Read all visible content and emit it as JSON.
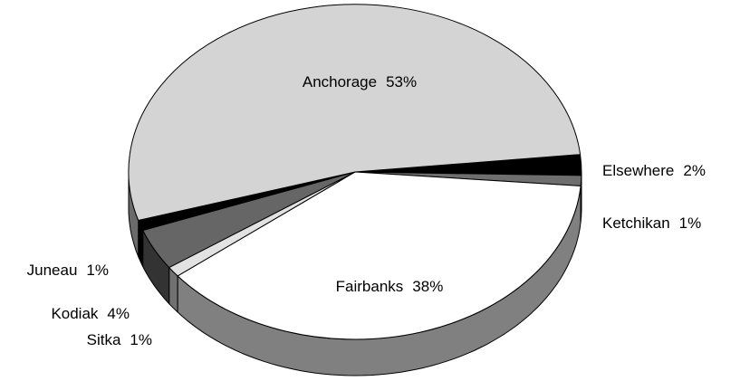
{
  "chart_data": {
    "type": "pie",
    "categories": [
      "Elsewhere",
      "Ketchikan",
      "Fairbanks",
      "Sitka",
      "Kodiak",
      "Juneau",
      "Anchorage"
    ],
    "values": [
      2,
      1,
      38,
      1,
      4,
      1,
      53
    ],
    "value_labels": [
      "2%",
      "1%",
      "38%",
      "1%",
      "4%",
      "1%",
      "53%"
    ],
    "colors": [
      "#000000",
      "#6e6e6e",
      "#ffffff",
      "#e2e2e2",
      "#666666",
      "#000000",
      "#d4d4d4"
    ]
  }
}
